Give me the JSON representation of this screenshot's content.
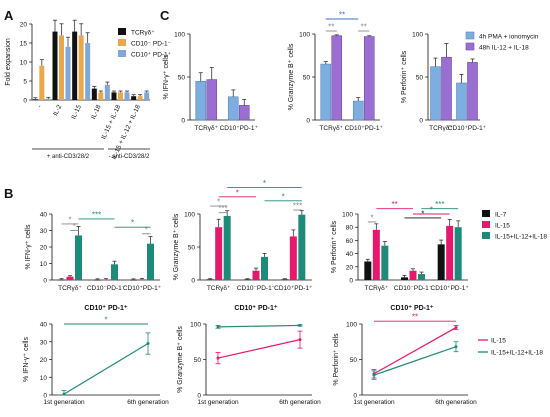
{
  "figure": {
    "panel_labels": {
      "A": "A",
      "B": "B",
      "C": "C"
    },
    "colors": {
      "tcr": "#111111",
      "cd10": "#e8a84e",
      "cd10pos": "#7fa8d6",
      "il7": "#111111",
      "il15": "#e6186e",
      "combo": "#1e8a7a",
      "pma": "#7eaee0",
      "il1218": "#9b6fd1",
      "sig_grey": "#888888",
      "sig_blue": "#3a6fc9",
      "sig_teal": "#1e8a7a",
      "sig_pink": "#e6186e",
      "sig_black": "#111111"
    }
  },
  "chart_data": [
    {
      "id": "A",
      "type": "bar",
      "ylabel": "Fold expansion",
      "ylim": [
        0,
        20
      ],
      "yticks": [
        0,
        5,
        10,
        15,
        20
      ],
      "categories": [
        "-",
        "IL-2",
        "IL-15",
        "IL-18",
        "IL-15 + IL-18",
        "IL-15 + IL-12 + IL-18"
      ],
      "series": [
        {
          "name": "TCRγδ⁺",
          "values": [
            0.2,
            18,
            18,
            3,
            2,
            1
          ]
        },
        {
          "name": "CD10⁻ PD-1⁻",
          "values": [
            9,
            17,
            17,
            2,
            2,
            1
          ]
        },
        {
          "name": "CD10⁺ PD-1⁺",
          "values": [
            0.3,
            14,
            15,
            4,
            2,
            2
          ]
        }
      ],
      "groups": [
        "+ anti-CD3/28/2",
        "- anti-CD3/28/2"
      ]
    },
    {
      "id": "C1",
      "type": "bar",
      "ylabel": "% IFN-γ⁺ cells",
      "ylim": [
        0,
        100
      ],
      "yticks": [
        0,
        50,
        100
      ],
      "categories": [
        "TCRγδ⁺",
        "CD10⁺PD-1⁺"
      ],
      "series": [
        {
          "name": "4h PMA + ionomycin",
          "values": [
            45,
            27
          ]
        },
        {
          "name": "48h IL-12 + IL-18",
          "values": [
            47,
            17
          ]
        }
      ]
    },
    {
      "id": "C2",
      "type": "bar",
      "ylabel": "% Granzyme B⁺ cells",
      "ylim": [
        0,
        100
      ],
      "yticks": [
        0,
        50,
        100
      ],
      "categories": [
        "TCRγδ⁺",
        "CD10⁺PD-1⁺"
      ],
      "series": [
        {
          "name": "4h PMA + ionomycin",
          "values": [
            65,
            22
          ]
        },
        {
          "name": "48h IL-12 + IL-18",
          "values": [
            98,
            97
          ]
        }
      ],
      "annotations": [
        "**",
        "**",
        "**"
      ]
    },
    {
      "id": "C3",
      "type": "bar",
      "ylabel": "% Perforin⁺ cells",
      "ylim": [
        0,
        100
      ],
      "yticks": [
        0,
        50,
        100
      ],
      "categories": [
        "TCRγδ⁺",
        "CD10⁺PD-1⁺"
      ],
      "series": [
        {
          "name": "4h PMA + ionomycin",
          "values": [
            62,
            43
          ]
        },
        {
          "name": "48h IL-12 + IL-18",
          "values": [
            73,
            67
          ]
        }
      ],
      "legend": [
        "4h PMA + ionomycin",
        "48h IL-12 + IL-18"
      ]
    },
    {
      "id": "B1",
      "type": "bar",
      "ylabel": "% IFN-γ⁺ cells",
      "ylim": [
        0,
        40
      ],
      "yticks": [
        0,
        10,
        20,
        30,
        40
      ],
      "categories": [
        "TCRγδ⁺",
        "CD10⁻PD-1⁻",
        "CD10⁺PD-1⁺"
      ],
      "series": [
        {
          "name": "IL-7",
          "values": [
            0.2,
            0.1,
            0.1
          ]
        },
        {
          "name": "IL-15",
          "values": [
            2,
            0.2,
            0.4
          ]
        },
        {
          "name": "IL-15+IL-12+IL-18",
          "values": [
            27,
            9.5,
            22
          ]
        }
      ],
      "annotations": [
        "*",
        "*",
        "***",
        "*",
        "*"
      ]
    },
    {
      "id": "B2",
      "type": "bar",
      "ylabel": "% Granzyme B⁺ cells",
      "ylim": [
        0,
        100
      ],
      "yticks": [
        0,
        50,
        100
      ],
      "categories": [
        "TCRγδ⁺",
        "CD10⁻PD-1⁻",
        "CD10⁺PD-1⁺"
      ],
      "series": [
        {
          "name": "IL-7",
          "values": [
            1,
            1,
            1
          ]
        },
        {
          "name": "IL-15",
          "values": [
            80,
            14,
            66
          ]
        },
        {
          "name": "IL-15+IL-12+IL-18",
          "values": [
            97,
            35,
            99
          ]
        }
      ],
      "annotations": [
        "*",
        "***",
        "*",
        "*",
        "*",
        "***"
      ]
    },
    {
      "id": "B3",
      "type": "bar",
      "ylabel": "% Perforin⁺ cells",
      "ylim": [
        0,
        100
      ],
      "yticks": [
        0,
        20,
        40,
        60,
        80,
        100
      ],
      "categories": [
        "TCRγδ⁺",
        "CD10⁻PD-1⁻",
        "CD10⁺PD-1⁺"
      ],
      "series": [
        {
          "name": "IL-7",
          "values": [
            28,
            4,
            54
          ]
        },
        {
          "name": "IL-15",
          "values": [
            76,
            14,
            82
          ]
        },
        {
          "name": "IL-15+IL-12+IL-18",
          "values": [
            52,
            9,
            80
          ]
        }
      ],
      "annotations": [
        "*",
        "**",
        "*",
        "*",
        "***"
      ],
      "legend": [
        "IL-7",
        "IL-15",
        "IL-15+IL-12+IL-18"
      ]
    },
    {
      "id": "B4",
      "type": "line",
      "title": "CD10⁺ PD-1⁺",
      "ylabel": "% IFN-γ⁺ cells",
      "ylim": [
        0,
        40
      ],
      "yticks": [
        0,
        10,
        20,
        30,
        40
      ],
      "categories": [
        "1st generation",
        "6th generation"
      ],
      "series": [
        {
          "name": "IL-15+IL-12+IL-18",
          "values": [
            0.5,
            29
          ]
        }
      ],
      "annotations": [
        "*"
      ]
    },
    {
      "id": "B5",
      "type": "line",
      "title": "CD10⁺ PD-1⁺",
      "ylabel": "% Granzyme B⁺ cells",
      "ylim": [
        0,
        100
      ],
      "yticks": [
        0,
        50,
        100
      ],
      "categories": [
        "1st generation",
        "6th generation"
      ],
      "series": [
        {
          "name": "IL-15",
          "values": [
            52,
            78
          ]
        },
        {
          "name": "IL-15+IL-12+IL-18",
          "values": [
            96,
            98
          ]
        }
      ]
    },
    {
      "id": "B6",
      "type": "line",
      "title": "CD10⁺ PD-1⁺",
      "ylabel": "% Perforin⁺ cells",
      "ylim": [
        0,
        100
      ],
      "yticks": [
        0,
        50,
        100
      ],
      "categories": [
        "1st generation",
        "6th generation"
      ],
      "series": [
        {
          "name": "IL-15",
          "values": [
            30,
            95
          ]
        },
        {
          "name": "IL-15+IL-12+IL-18",
          "values": [
            28,
            68
          ]
        }
      ],
      "annotations": [
        "**"
      ],
      "legend": [
        "IL-15",
        "IL-15+IL-12+IL-18"
      ]
    }
  ]
}
